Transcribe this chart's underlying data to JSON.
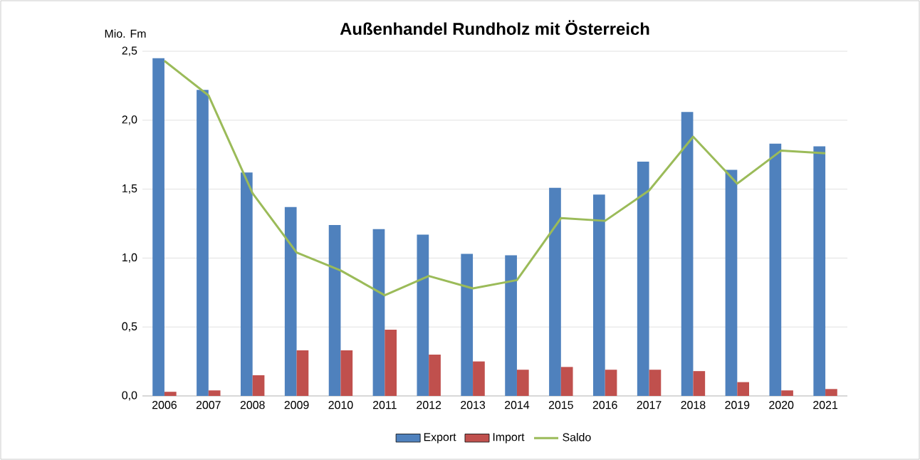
{
  "chart_data": {
    "type": "bar",
    "title": "Außenhandel Rundholz mit Österreich",
    "ylabel": "Mio. Fm",
    "categories": [
      "2006",
      "2007",
      "2008",
      "2009",
      "2010",
      "2011",
      "2012",
      "2013",
      "2014",
      "2015",
      "2016",
      "2017",
      "2018",
      "2019",
      "2020",
      "2021"
    ],
    "series": [
      {
        "name": "Export",
        "color": "#4f81bd",
        "values": [
          2.45,
          2.22,
          1.62,
          1.37,
          1.24,
          1.21,
          1.17,
          1.03,
          1.02,
          1.51,
          1.46,
          1.7,
          2.06,
          1.64,
          1.83,
          1.81
        ]
      },
      {
        "name": "Import",
        "color": "#c0504d",
        "values": [
          0.03,
          0.04,
          0.15,
          0.33,
          0.33,
          0.48,
          0.3,
          0.25,
          0.19,
          0.21,
          0.19,
          0.19,
          0.18,
          0.1,
          0.04,
          0.05
        ]
      },
      {
        "name": "Saldo",
        "type": "line",
        "color": "#9bbb59",
        "values": [
          2.43,
          2.18,
          1.47,
          1.04,
          0.91,
          0.73,
          0.87,
          0.78,
          0.84,
          1.29,
          1.27,
          1.49,
          1.88,
          1.54,
          1.78,
          1.76
        ]
      }
    ],
    "ylim": [
      0,
      2.5
    ],
    "yticks": [
      {
        "value": 0,
        "label": "0,0"
      },
      {
        "value": 0.5,
        "label": "0,5"
      },
      {
        "value": 1,
        "label": "1,0"
      },
      {
        "value": 1.5,
        "label": "1,5"
      },
      {
        "value": 2,
        "label": "2,0"
      },
      {
        "value": 2.5,
        "label": "2,5"
      }
    ],
    "grid": "y",
    "legend": "bottom",
    "marker": "none"
  }
}
